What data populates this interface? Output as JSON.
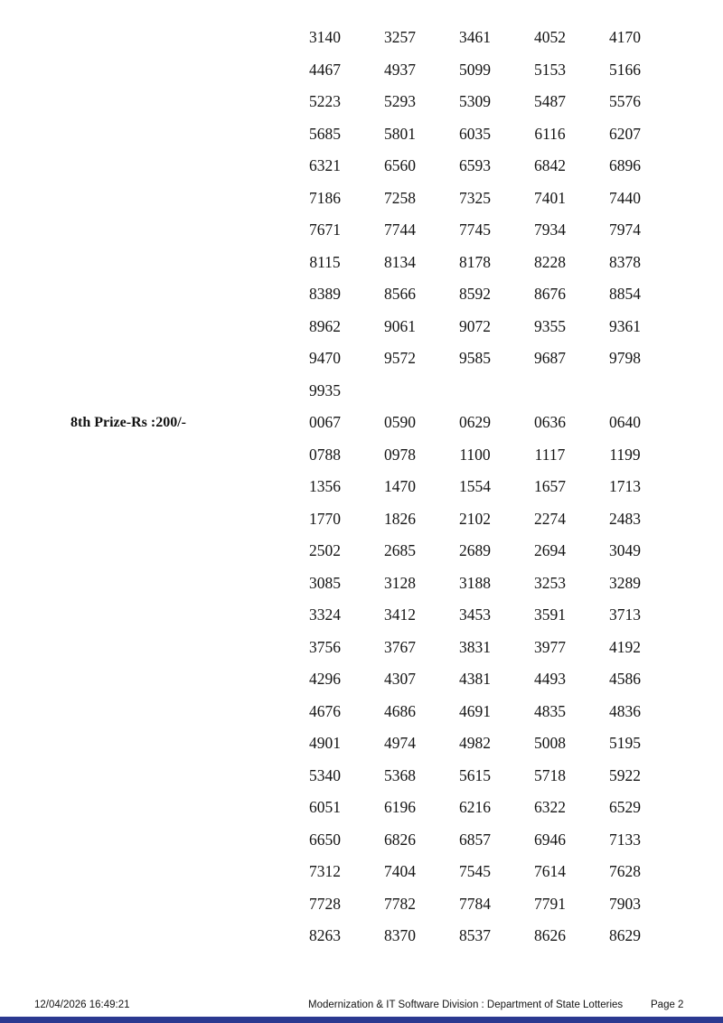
{
  "page": {
    "accent_bar_color": "#2b3990"
  },
  "sections": [
    {
      "label": "",
      "rows": [
        [
          "3140",
          "3257",
          "3461",
          "4052",
          "4170"
        ],
        [
          "4467",
          "4937",
          "5099",
          "5153",
          "5166"
        ],
        [
          "5223",
          "5293",
          "5309",
          "5487",
          "5576"
        ],
        [
          "5685",
          "5801",
          "6035",
          "6116",
          "6207"
        ],
        [
          "6321",
          "6560",
          "6593",
          "6842",
          "6896"
        ],
        [
          "7186",
          "7258",
          "7325",
          "7401",
          "7440"
        ],
        [
          "7671",
          "7744",
          "7745",
          "7934",
          "7974"
        ],
        [
          "8115",
          "8134",
          "8178",
          "8228",
          "8378"
        ],
        [
          "8389",
          "8566",
          "8592",
          "8676",
          "8854"
        ],
        [
          "8962",
          "9061",
          "9072",
          "9355",
          "9361"
        ],
        [
          "9470",
          "9572",
          "9585",
          "9687",
          "9798"
        ],
        [
          "9935"
        ]
      ]
    },
    {
      "label": "8th Prize-Rs :200/-",
      "rows": [
        [
          "0067",
          "0590",
          "0629",
          "0636",
          "0640"
        ],
        [
          "0788",
          "0978",
          "1100",
          "1117",
          "1199"
        ],
        [
          "1356",
          "1470",
          "1554",
          "1657",
          "1713"
        ],
        [
          "1770",
          "1826",
          "2102",
          "2274",
          "2483"
        ],
        [
          "2502",
          "2685",
          "2689",
          "2694",
          "3049"
        ],
        [
          "3085",
          "3128",
          "3188",
          "3253",
          "3289"
        ],
        [
          "3324",
          "3412",
          "3453",
          "3591",
          "3713"
        ],
        [
          "3756",
          "3767",
          "3831",
          "3977",
          "4192"
        ],
        [
          "4296",
          "4307",
          "4381",
          "4493",
          "4586"
        ],
        [
          "4676",
          "4686",
          "4691",
          "4835",
          "4836"
        ],
        [
          "4901",
          "4974",
          "4982",
          "5008",
          "5195"
        ],
        [
          "5340",
          "5368",
          "5615",
          "5718",
          "5922"
        ],
        [
          "6051",
          "6196",
          "6216",
          "6322",
          "6529"
        ],
        [
          "6650",
          "6826",
          "6857",
          "6946",
          "7133"
        ],
        [
          "7312",
          "7404",
          "7545",
          "7614",
          "7628"
        ],
        [
          "7728",
          "7782",
          "7784",
          "7791",
          "7903"
        ],
        [
          "8263",
          "8370",
          "8537",
          "8626",
          "8629"
        ]
      ]
    }
  ],
  "footer": {
    "timestamp": "12/04/2026 16:49:21",
    "division": "Modernization & IT Software Division : Department of State Lotteries",
    "page_label": "Page 2"
  }
}
